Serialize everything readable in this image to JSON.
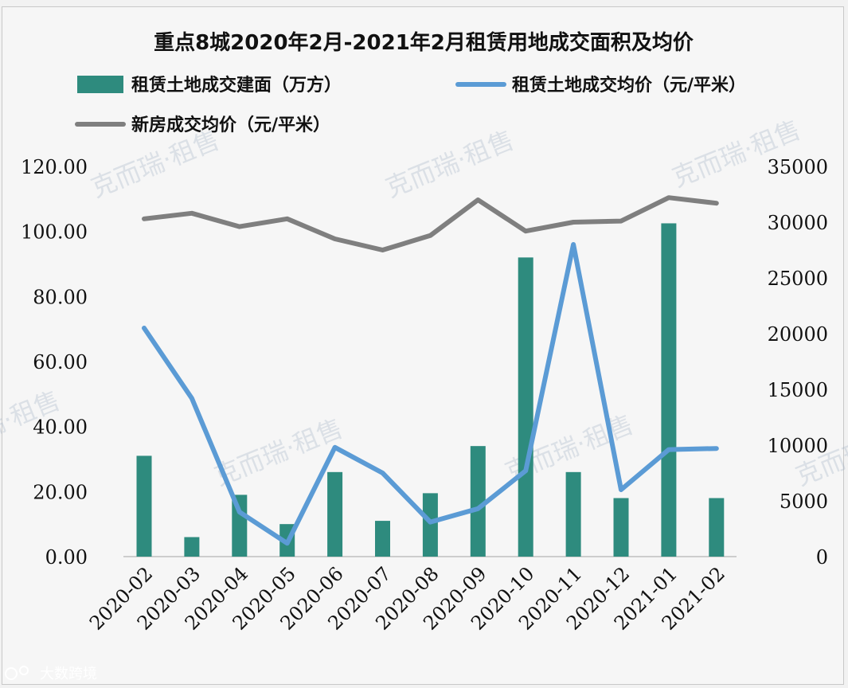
{
  "chart_data": {
    "type": "bar+line",
    "title": "重点8城2020年2月-2021年2月租赁用地成交面积及均价",
    "categories": [
      "2020-02",
      "2020-03",
      "2020-04",
      "2020-05",
      "2020-06",
      "2020-07",
      "2020-08",
      "2020-09",
      "2020-10",
      "2020-11",
      "2020-12",
      "2021-01",
      "2021-02"
    ],
    "series": [
      {
        "name": "租赁土地成交建面（万方）",
        "type": "bar",
        "axis": "left",
        "color": "#2e8b7e",
        "values": [
          31,
          6,
          19,
          10,
          26,
          11,
          19.5,
          34,
          92,
          26,
          18,
          102.5,
          18
        ]
      },
      {
        "name": "租赁土地成交均价（元/平米）",
        "type": "line",
        "axis": "right",
        "color": "#5b9bd5",
        "values": [
          20500,
          14200,
          4000,
          1200,
          9800,
          7500,
          3100,
          4300,
          7700,
          28000,
          6000,
          9600,
          9700
        ]
      },
      {
        "name": "新房成交均价（元/平米）",
        "type": "line",
        "axis": "right",
        "color": "#7f7f7f",
        "values": [
          30300,
          30800,
          29600,
          30300,
          28500,
          27500,
          28800,
          32000,
          29200,
          30000,
          30100,
          32200,
          31700
        ]
      }
    ],
    "y_left": {
      "min": 0,
      "max": 120,
      "ticks": [
        "0.00",
        "20.00",
        "40.00",
        "60.00",
        "80.00",
        "100.00",
        "120.00"
      ]
    },
    "y_right": {
      "min": 0,
      "max": 35000,
      "ticks": [
        "0",
        "5000",
        "10000",
        "15000",
        "20000",
        "25000",
        "30000",
        "35000"
      ]
    },
    "legend_position": "top"
  },
  "watermark": "克而瑞·租售",
  "logo_text": "大数跨境"
}
